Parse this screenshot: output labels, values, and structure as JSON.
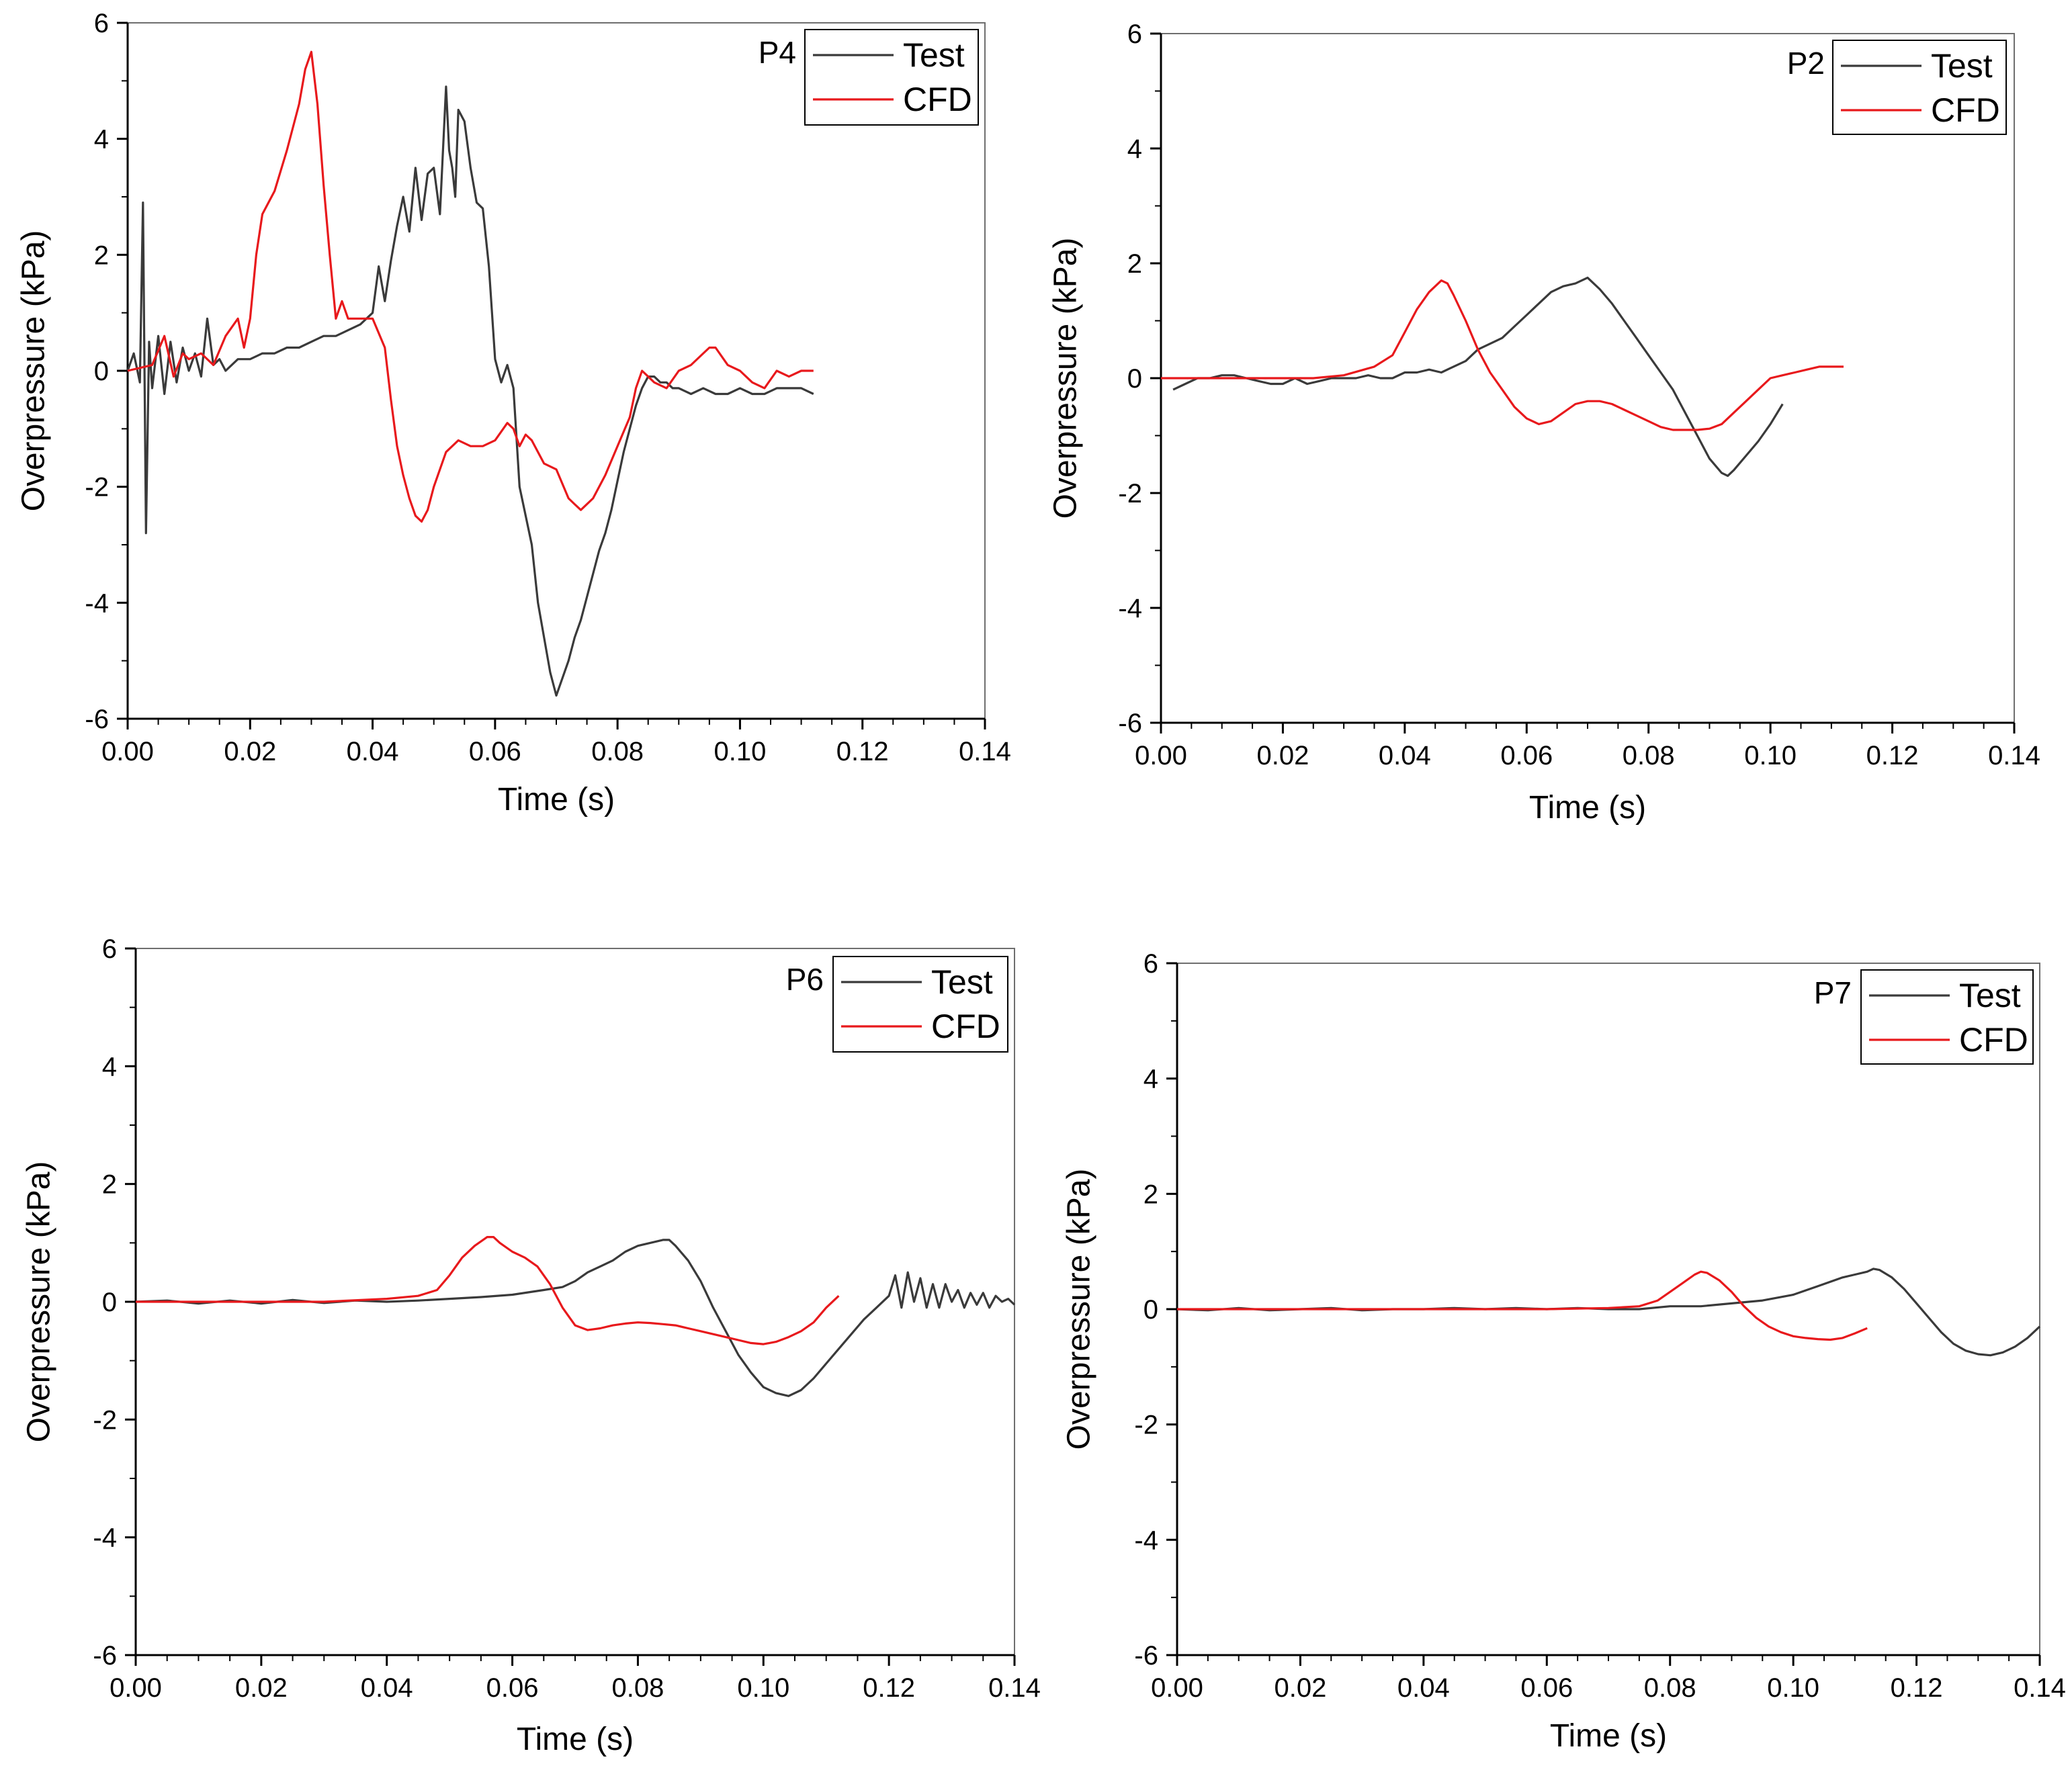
{
  "colors": {
    "test": "#3a3a3a",
    "cfd": "#e8191c",
    "axis": "#000000"
  },
  "chart_data": [
    {
      "type": "line",
      "label": "P4",
      "xlabel": "Time (s)",
      "ylabel": "Overpressure (kPa)",
      "xlim": [
        0,
        0.14
      ],
      "ylim": [
        -6,
        6
      ],
      "xticks": [
        "0.00",
        "0.02",
        "0.04",
        "0.06",
        "0.08",
        "0.10",
        "0.12",
        "0.14"
      ],
      "yticks": [
        "-6",
        "-4",
        "-2",
        "0",
        "2",
        "4",
        "6"
      ],
      "legend": "top-right",
      "series": [
        {
          "name": "Test",
          "x": [
            0.0,
            0.001,
            0.002,
            0.0025,
            0.003,
            0.0035,
            0.004,
            0.005,
            0.006,
            0.007,
            0.008,
            0.009,
            0.01,
            0.011,
            0.012,
            0.013,
            0.014,
            0.015,
            0.016,
            0.018,
            0.02,
            0.022,
            0.024,
            0.026,
            0.028,
            0.03,
            0.032,
            0.034,
            0.036,
            0.038,
            0.04,
            0.041,
            0.042,
            0.043,
            0.044,
            0.045,
            0.046,
            0.047,
            0.048,
            0.049,
            0.05,
            0.051,
            0.052,
            0.0525,
            0.053,
            0.0535,
            0.054,
            0.055,
            0.056,
            0.057,
            0.058,
            0.059,
            0.06,
            0.061,
            0.062,
            0.063,
            0.064,
            0.065,
            0.066,
            0.067,
            0.068,
            0.069,
            0.07,
            0.071,
            0.072,
            0.073,
            0.074,
            0.075,
            0.076,
            0.077,
            0.078,
            0.079,
            0.08,
            0.081,
            0.082,
            0.083,
            0.084,
            0.085,
            0.086,
            0.087,
            0.088,
            0.089,
            0.09,
            0.092,
            0.094,
            0.096,
            0.098,
            0.1,
            0.102,
            0.104,
            0.106,
            0.108,
            0.11,
            0.112
          ],
          "y": [
            0.0,
            0.3,
            -0.2,
            2.9,
            -2.8,
            0.5,
            -0.3,
            0.6,
            -0.4,
            0.5,
            -0.2,
            0.4,
            0.0,
            0.3,
            -0.1,
            0.9,
            0.1,
            0.2,
            0.0,
            0.2,
            0.2,
            0.3,
            0.3,
            0.4,
            0.4,
            0.5,
            0.6,
            0.6,
            0.7,
            0.8,
            1.0,
            1.8,
            1.2,
            1.9,
            2.5,
            3.0,
            2.4,
            3.5,
            2.6,
            3.4,
            3.5,
            2.7,
            4.9,
            3.8,
            3.5,
            3.0,
            4.5,
            4.3,
            3.5,
            2.9,
            2.8,
            1.8,
            0.2,
            -0.2,
            0.1,
            -0.3,
            -2.0,
            -2.5,
            -3.0,
            -4.0,
            -4.6,
            -5.2,
            -5.6,
            -5.3,
            -5.0,
            -4.6,
            -4.3,
            -3.9,
            -3.5,
            -3.1,
            -2.8,
            -2.4,
            -1.9,
            -1.4,
            -1.0,
            -0.6,
            -0.3,
            -0.1,
            -0.1,
            -0.2,
            -0.2,
            -0.3,
            -0.3,
            -0.4,
            -0.3,
            -0.4,
            -0.4,
            -0.3,
            -0.4,
            -0.4,
            -0.3,
            -0.3,
            -0.3,
            -0.4
          ]
        },
        {
          "name": "CFD",
          "x": [
            0.0,
            0.004,
            0.006,
            0.0075,
            0.009,
            0.01,
            0.012,
            0.014,
            0.016,
            0.018,
            0.019,
            0.02,
            0.021,
            0.022,
            0.024,
            0.026,
            0.028,
            0.029,
            0.03,
            0.031,
            0.032,
            0.033,
            0.034,
            0.035,
            0.036,
            0.037,
            0.038,
            0.04,
            0.042,
            0.043,
            0.044,
            0.045,
            0.046,
            0.047,
            0.048,
            0.049,
            0.05,
            0.052,
            0.054,
            0.056,
            0.058,
            0.06,
            0.062,
            0.063,
            0.064,
            0.065,
            0.066,
            0.068,
            0.07,
            0.072,
            0.073,
            0.074,
            0.075,
            0.076,
            0.078,
            0.08,
            0.082,
            0.083,
            0.084,
            0.085,
            0.086,
            0.088,
            0.09,
            0.092,
            0.094,
            0.095,
            0.096,
            0.098,
            0.1,
            0.102,
            0.104,
            0.106,
            0.108,
            0.11,
            0.112
          ],
          "y": [
            0.0,
            0.1,
            0.6,
            -0.1,
            0.3,
            0.2,
            0.3,
            0.1,
            0.6,
            0.9,
            0.4,
            0.9,
            2.0,
            2.7,
            3.1,
            3.8,
            4.6,
            5.2,
            5.5,
            4.6,
            3.2,
            2.0,
            0.9,
            1.2,
            0.9,
            0.9,
            0.9,
            0.9,
            0.4,
            -0.5,
            -1.3,
            -1.8,
            -2.2,
            -2.5,
            -2.6,
            -2.4,
            -2.0,
            -1.4,
            -1.2,
            -1.3,
            -1.3,
            -1.2,
            -0.9,
            -1.0,
            -1.3,
            -1.1,
            -1.2,
            -1.6,
            -1.7,
            -2.2,
            -2.3,
            -2.4,
            -2.3,
            -2.2,
            -1.8,
            -1.3,
            -0.8,
            -0.3,
            0.0,
            -0.1,
            -0.2,
            -0.3,
            0.0,
            0.1,
            0.3,
            0.4,
            0.4,
            0.1,
            0.0,
            -0.2,
            -0.3,
            0.0,
            -0.1,
            0.0,
            0.0
          ]
        }
      ]
    },
    {
      "type": "line",
      "label": "P2",
      "xlabel": "Time (s)",
      "ylabel": "Overpressure (kPa)",
      "xlim": [
        0,
        0.14
      ],
      "ylim": [
        -6,
        6
      ],
      "xticks": [
        "0.00",
        "0.02",
        "0.04",
        "0.06",
        "0.08",
        "0.10",
        "0.12",
        "0.14"
      ],
      "yticks": [
        "-6",
        "-4",
        "-2",
        "0",
        "2",
        "4",
        "6"
      ],
      "legend": "top-right",
      "series": [
        {
          "name": "Test",
          "x": [
            0.002,
            0.004,
            0.006,
            0.008,
            0.01,
            0.012,
            0.014,
            0.016,
            0.018,
            0.02,
            0.022,
            0.024,
            0.026,
            0.028,
            0.03,
            0.032,
            0.034,
            0.036,
            0.038,
            0.04,
            0.042,
            0.044,
            0.046,
            0.048,
            0.05,
            0.052,
            0.054,
            0.056,
            0.058,
            0.06,
            0.062,
            0.064,
            0.066,
            0.068,
            0.07,
            0.072,
            0.074,
            0.076,
            0.078,
            0.08,
            0.082,
            0.084,
            0.086,
            0.088,
            0.09,
            0.092,
            0.093,
            0.094,
            0.096,
            0.098,
            0.1,
            0.102
          ],
          "y": [
            -0.2,
            -0.1,
            0.0,
            0.0,
            0.05,
            0.05,
            0.0,
            -0.05,
            -0.1,
            -0.1,
            0.0,
            -0.1,
            -0.05,
            0.0,
            0.0,
            0.0,
            0.05,
            0.0,
            0.0,
            0.1,
            0.1,
            0.15,
            0.1,
            0.2,
            0.3,
            0.5,
            0.6,
            0.7,
            0.9,
            1.1,
            1.3,
            1.5,
            1.6,
            1.65,
            1.75,
            1.55,
            1.3,
            1.0,
            0.7,
            0.4,
            0.1,
            -0.2,
            -0.6,
            -1.0,
            -1.4,
            -1.65,
            -1.7,
            -1.6,
            -1.35,
            -1.1,
            -0.8,
            -0.45
          ]
        },
        {
          "name": "CFD",
          "x": [
            0.0,
            0.01,
            0.02,
            0.025,
            0.03,
            0.035,
            0.038,
            0.04,
            0.042,
            0.044,
            0.046,
            0.047,
            0.048,
            0.05,
            0.052,
            0.054,
            0.056,
            0.058,
            0.06,
            0.062,
            0.064,
            0.066,
            0.068,
            0.07,
            0.072,
            0.074,
            0.076,
            0.078,
            0.08,
            0.082,
            0.084,
            0.086,
            0.088,
            0.09,
            0.092,
            0.094,
            0.096,
            0.098,
            0.1,
            0.102,
            0.104,
            0.106,
            0.108,
            0.11,
            0.112
          ],
          "y": [
            0.0,
            0.0,
            0.0,
            0.0,
            0.05,
            0.2,
            0.4,
            0.8,
            1.2,
            1.5,
            1.7,
            1.65,
            1.45,
            1.0,
            0.5,
            0.1,
            -0.2,
            -0.5,
            -0.7,
            -0.8,
            -0.75,
            -0.6,
            -0.45,
            -0.4,
            -0.4,
            -0.45,
            -0.55,
            -0.65,
            -0.75,
            -0.85,
            -0.9,
            -0.9,
            -0.9,
            -0.88,
            -0.8,
            -0.6,
            -0.4,
            -0.2,
            0.0,
            0.05,
            0.1,
            0.15,
            0.2,
            0.2,
            0.2
          ]
        }
      ]
    },
    {
      "type": "line",
      "label": "P6",
      "xlabel": "Time (s)",
      "ylabel": "Overpressure (kPa)",
      "xlim": [
        0,
        0.14
      ],
      "ylim": [
        -6,
        6
      ],
      "xticks": [
        "0.00",
        "0.02",
        "0.04",
        "0.06",
        "0.08",
        "0.10",
        "0.12",
        "0.14"
      ],
      "yticks": [
        "-6",
        "-4",
        "-2",
        "0",
        "2",
        "4",
        "6"
      ],
      "legend": "top-right",
      "series": [
        {
          "name": "Test",
          "x": [
            0.0,
            0.005,
            0.01,
            0.015,
            0.02,
            0.025,
            0.03,
            0.035,
            0.04,
            0.045,
            0.05,
            0.055,
            0.06,
            0.065,
            0.068,
            0.07,
            0.072,
            0.074,
            0.076,
            0.078,
            0.08,
            0.082,
            0.084,
            0.085,
            0.086,
            0.088,
            0.09,
            0.092,
            0.094,
            0.096,
            0.098,
            0.1,
            0.102,
            0.104,
            0.106,
            0.108,
            0.11,
            0.112,
            0.114,
            0.116,
            0.118,
            0.12,
            0.121,
            0.122,
            0.123,
            0.124,
            0.125,
            0.126,
            0.127,
            0.128,
            0.129,
            0.13,
            0.131,
            0.132,
            0.133,
            0.134,
            0.135,
            0.136,
            0.137,
            0.138,
            0.139,
            0.14
          ],
          "y": [
            0.0,
            0.02,
            -0.03,
            0.02,
            -0.03,
            0.03,
            -0.02,
            0.02,
            0.0,
            0.02,
            0.05,
            0.08,
            0.12,
            0.2,
            0.25,
            0.35,
            0.5,
            0.6,
            0.7,
            0.85,
            0.95,
            1.0,
            1.05,
            1.05,
            0.95,
            0.7,
            0.35,
            -0.1,
            -0.5,
            -0.9,
            -1.2,
            -1.45,
            -1.55,
            -1.6,
            -1.5,
            -1.3,
            -1.05,
            -0.8,
            -0.55,
            -0.3,
            -0.1,
            0.1,
            0.45,
            -0.1,
            0.5,
            0.0,
            0.4,
            -0.1,
            0.3,
            -0.1,
            0.3,
            0.0,
            0.2,
            -0.1,
            0.15,
            -0.05,
            0.15,
            -0.1,
            0.1,
            0.0,
            0.05,
            -0.05
          ]
        },
        {
          "name": "CFD",
          "x": [
            0.0,
            0.01,
            0.02,
            0.03,
            0.04,
            0.045,
            0.048,
            0.05,
            0.052,
            0.054,
            0.056,
            0.057,
            0.058,
            0.06,
            0.062,
            0.064,
            0.066,
            0.068,
            0.07,
            0.072,
            0.074,
            0.076,
            0.078,
            0.08,
            0.082,
            0.084,
            0.086,
            0.088,
            0.09,
            0.092,
            0.094,
            0.096,
            0.098,
            0.1,
            0.102,
            0.104,
            0.106,
            0.108,
            0.11,
            0.112
          ],
          "y": [
            0.0,
            0.0,
            0.0,
            0.0,
            0.05,
            0.1,
            0.2,
            0.45,
            0.75,
            0.95,
            1.1,
            1.1,
            1.0,
            0.85,
            0.75,
            0.6,
            0.3,
            -0.1,
            -0.4,
            -0.48,
            -0.45,
            -0.4,
            -0.37,
            -0.35,
            -0.36,
            -0.38,
            -0.4,
            -0.45,
            -0.5,
            -0.55,
            -0.6,
            -0.65,
            -0.7,
            -0.72,
            -0.68,
            -0.6,
            -0.5,
            -0.35,
            -0.1,
            0.1
          ]
        }
      ]
    },
    {
      "type": "line",
      "label": "P7",
      "xlabel": "Time (s)",
      "ylabel": "Overpressure (kPa)",
      "xlim": [
        0,
        0.14
      ],
      "ylim": [
        -6,
        6
      ],
      "xticks": [
        "0.00",
        "0.02",
        "0.04",
        "0.06",
        "0.08",
        "0.10",
        "0.12",
        "0.14"
      ],
      "yticks": [
        "-6",
        "-4",
        "-2",
        "0",
        "2",
        "4",
        "6"
      ],
      "legend": "top-right",
      "series": [
        {
          "name": "Test",
          "x": [
            0.0,
            0.005,
            0.01,
            0.015,
            0.02,
            0.025,
            0.03,
            0.035,
            0.04,
            0.045,
            0.05,
            0.055,
            0.06,
            0.065,
            0.07,
            0.075,
            0.08,
            0.085,
            0.09,
            0.095,
            0.1,
            0.104,
            0.108,
            0.11,
            0.112,
            0.113,
            0.114,
            0.116,
            0.118,
            0.12,
            0.122,
            0.124,
            0.126,
            0.128,
            0.13,
            0.132,
            0.134,
            0.136,
            0.138,
            0.14
          ],
          "y": [
            0.0,
            -0.02,
            0.02,
            -0.02,
            0.0,
            0.02,
            -0.02,
            0.0,
            0.0,
            0.02,
            0.0,
            0.02,
            0.0,
            0.02,
            0.0,
            0.0,
            0.05,
            0.05,
            0.1,
            0.15,
            0.25,
            0.4,
            0.55,
            0.6,
            0.65,
            0.7,
            0.68,
            0.55,
            0.35,
            0.1,
            -0.15,
            -0.4,
            -0.6,
            -0.72,
            -0.78,
            -0.8,
            -0.75,
            -0.65,
            -0.5,
            -0.3
          ]
        },
        {
          "name": "CFD",
          "x": [
            0.0,
            0.02,
            0.04,
            0.06,
            0.07,
            0.075,
            0.078,
            0.08,
            0.082,
            0.084,
            0.085,
            0.086,
            0.088,
            0.09,
            0.092,
            0.094,
            0.096,
            0.098,
            0.1,
            0.102,
            0.104,
            0.106,
            0.108,
            0.11,
            0.112
          ],
          "y": [
            0.0,
            0.0,
            0.0,
            0.0,
            0.02,
            0.05,
            0.15,
            0.3,
            0.45,
            0.6,
            0.65,
            0.63,
            0.5,
            0.3,
            0.05,
            -0.15,
            -0.3,
            -0.4,
            -0.47,
            -0.5,
            -0.52,
            -0.53,
            -0.5,
            -0.42,
            -0.33
          ]
        }
      ]
    }
  ]
}
